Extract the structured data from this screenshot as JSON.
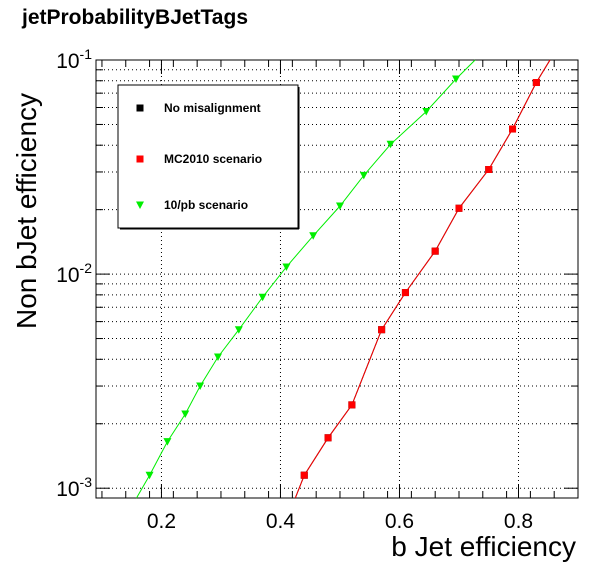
{
  "title": "jetProbabilityBJetTags",
  "chart_data": {
    "type": "line",
    "title": "jetProbabilityBJetTags",
    "xlabel": "b Jet efficiency",
    "ylabel": "Non bJet efficiency",
    "xlim": [
      0.09,
      0.9
    ],
    "ylim": [
      0.0009,
      0.1
    ],
    "y_scale": "log",
    "grid": true,
    "legend_position": "top-left",
    "x_tick_labels": [
      "0.2",
      "0.4",
      "0.6",
      "0.8"
    ],
    "x_ticks": [
      0.2,
      0.4,
      0.6,
      0.8
    ],
    "y_tick_labels": [
      {
        "base": "10",
        "exp": "-3",
        "value": 0.001
      },
      {
        "base": "10",
        "exp": "-2",
        "value": 0.01
      },
      {
        "base": "10",
        "exp": "-1",
        "value": 0.1
      }
    ],
    "series": [
      {
        "name": "No misalignment",
        "color": "#000000",
        "marker": "square",
        "x": [
          0.44,
          0.48,
          0.52,
          0.57,
          0.61,
          0.66,
          0.7,
          0.75,
          0.79,
          0.83
        ],
        "y": [
          0.00115,
          0.00172,
          0.00245,
          0.0055,
          0.0082,
          0.0128,
          0.0203,
          0.0308,
          0.0476,
          0.0785
        ],
        "line_x": [
          0.425,
          0.44,
          0.48,
          0.52,
          0.57,
          0.61,
          0.66,
          0.7,
          0.75,
          0.79,
          0.83,
          0.853
        ],
        "line_y": [
          0.0009,
          0.00115,
          0.00172,
          0.00245,
          0.0055,
          0.0082,
          0.0128,
          0.0203,
          0.0308,
          0.0476,
          0.0785,
          0.1
        ]
      },
      {
        "name": "MC2010 scenario",
        "color": "#ff0000",
        "marker": "square",
        "x": [
          0.44,
          0.48,
          0.52,
          0.57,
          0.61,
          0.66,
          0.7,
          0.75,
          0.79,
          0.83
        ],
        "y": [
          0.00115,
          0.00172,
          0.00245,
          0.0055,
          0.0082,
          0.0128,
          0.0203,
          0.0308,
          0.0476,
          0.0785
        ],
        "line_x": [
          0.425,
          0.44,
          0.48,
          0.52,
          0.57,
          0.61,
          0.66,
          0.7,
          0.75,
          0.79,
          0.83,
          0.853
        ],
        "line_y": [
          0.0009,
          0.00115,
          0.00172,
          0.00245,
          0.0055,
          0.0082,
          0.0128,
          0.0203,
          0.0308,
          0.0476,
          0.0785,
          0.1
        ]
      },
      {
        "name": "10/pb scenario",
        "color": "#00ee00",
        "marker": "triangle-down",
        "x": [
          0.18,
          0.21,
          0.24,
          0.265,
          0.295,
          0.33,
          0.37,
          0.41,
          0.455,
          0.5,
          0.54,
          0.585,
          0.645,
          0.695
        ],
        "y": [
          0.00115,
          0.00165,
          0.00222,
          0.003,
          0.0041,
          0.0055,
          0.0078,
          0.0108,
          0.0151,
          0.0208,
          0.0289,
          0.0404,
          0.0575,
          0.0815
        ],
        "line_x": [
          0.158,
          0.18,
          0.21,
          0.24,
          0.265,
          0.295,
          0.33,
          0.37,
          0.41,
          0.455,
          0.5,
          0.54,
          0.585,
          0.645,
          0.695,
          0.727
        ],
        "line_y": [
          0.0009,
          0.00115,
          0.00165,
          0.00222,
          0.003,
          0.0041,
          0.0055,
          0.0078,
          0.0108,
          0.0151,
          0.0208,
          0.0289,
          0.0404,
          0.0575,
          0.0815,
          0.1
        ]
      }
    ]
  }
}
